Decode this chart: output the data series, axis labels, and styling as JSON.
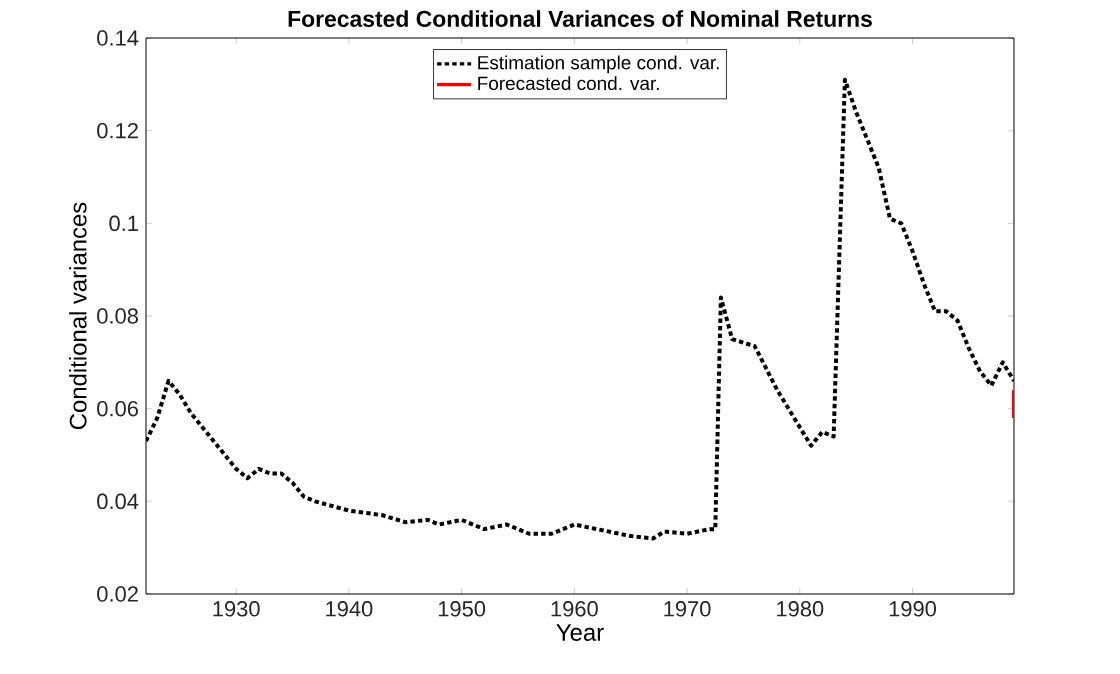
{
  "chart_data": {
    "type": "line",
    "title": "Forecasted Conditional Variances of Nominal Returns",
    "xlabel": "Year",
    "ylabel": "Conditional variances",
    "xlim": [
      1922,
      1999
    ],
    "ylim": [
      0.02,
      0.14
    ],
    "xticks": [
      1930,
      1940,
      1950,
      1960,
      1970,
      1980,
      1990
    ],
    "yticks": [
      {
        "value": 0.02,
        "label": "0.02"
      },
      {
        "value": 0.04,
        "label": "0.04"
      },
      {
        "value": 0.06,
        "label": "0.06"
      },
      {
        "value": 0.08,
        "label": "0.08"
      },
      {
        "value": 0.1,
        "label": "0.1"
      },
      {
        "value": 0.12,
        "label": "0.12"
      },
      {
        "value": 0.14,
        "label": "0.14"
      }
    ],
    "legend": "top",
    "grid": false,
    "series": [
      {
        "name": "Estimation sample cond. var.",
        "color": "#000000",
        "line_style": "dotted",
        "x": [
          1922,
          1923,
          1924,
          1925,
          1926,
          1927,
          1928,
          1929,
          1930,
          1931,
          1932,
          1933,
          1934,
          1935,
          1936,
          1937,
          1940,
          1943,
          1945,
          1947,
          1948,
          1950,
          1952,
          1954,
          1956,
          1958,
          1960,
          1962,
          1965,
          1967,
          1968,
          1970,
          1972,
          1972.5,
          1973,
          1974,
          1976,
          1978,
          1980,
          1981,
          1982,
          1983,
          1984,
          1985,
          1986,
          1987,
          1988,
          1989,
          1990,
          1991,
          1992,
          1993,
          1994,
          1995,
          1996,
          1997,
          1998,
          1999
        ],
        "values": [
          0.053,
          0.058,
          0.066,
          0.063,
          0.059,
          0.056,
          0.053,
          0.05,
          0.047,
          0.045,
          0.047,
          0.046,
          0.046,
          0.044,
          0.041,
          0.04,
          0.038,
          0.037,
          0.0355,
          0.036,
          0.035,
          0.036,
          0.034,
          0.035,
          0.033,
          0.033,
          0.035,
          0.034,
          0.0325,
          0.032,
          0.0335,
          0.033,
          0.034,
          0.034,
          0.084,
          0.075,
          0.0735,
          0.064,
          0.056,
          0.052,
          0.055,
          0.054,
          0.131,
          0.124,
          0.118,
          0.112,
          0.101,
          0.1,
          0.094,
          0.087,
          0.081,
          0.081,
          0.079,
          0.073,
          0.068,
          0.065,
          0.07,
          0.066
        ]
      },
      {
        "name": "Forecasted cond. var.",
        "color": "#ff0000",
        "line_style": "solid",
        "x": [
          1999,
          1999
        ],
        "values": [
          0.064,
          0.058
        ]
      }
    ]
  }
}
